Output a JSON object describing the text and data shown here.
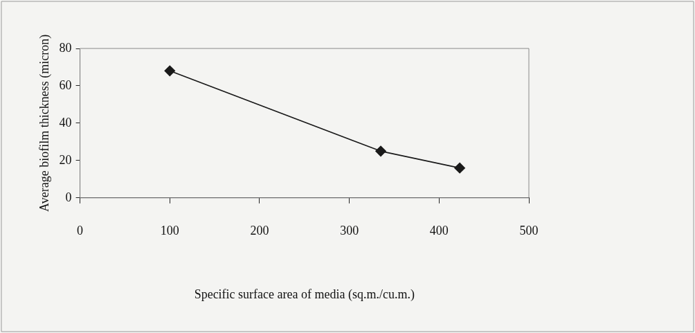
{
  "chart_data": {
    "type": "line",
    "xlabel": "Specific surface area of media (sq.m./cu.m.)",
    "ylabel": "Average biofilm thickness (micron)",
    "x": [
      100,
      335,
      423
    ],
    "series": [
      {
        "color": "#1a1a1a",
        "values": [
          68,
          25,
          16
        ]
      }
    ],
    "xlim": [
      0,
      500
    ],
    "xticks": [
      0,
      100,
      200,
      300,
      400,
      500
    ],
    "ylim": [
      0,
      80
    ],
    "yticks": [
      0,
      20,
      40,
      60,
      80
    ],
    "marker": "diamond",
    "line_style": "solid",
    "legend": false,
    "grid": false
  }
}
